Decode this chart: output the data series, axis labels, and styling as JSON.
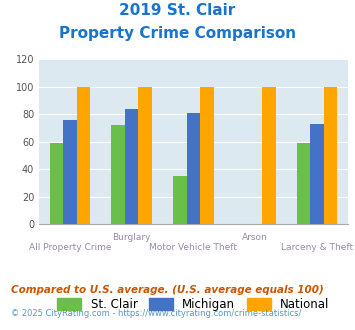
{
  "title_line1": "2019 St. Clair",
  "title_line2": "Property Crime Comparison",
  "x_labels_top": [
    "",
    "Burglary",
    "",
    "Arson",
    ""
  ],
  "x_labels_bottom": [
    "All Property Crime",
    "",
    "Motor Vehicle Theft",
    "",
    "Larceny & Theft"
  ],
  "st_clair": [
    59,
    72,
    35,
    0,
    59
  ],
  "michigan": [
    76,
    84,
    81,
    0,
    73
  ],
  "national": [
    100,
    100,
    100,
    100,
    100
  ],
  "colors": {
    "st_clair": "#6abf4b",
    "michigan": "#4472c4",
    "national": "#ffa500"
  },
  "ylim": [
    0,
    120
  ],
  "yticks": [
    0,
    20,
    40,
    60,
    80,
    100,
    120
  ],
  "legend_labels": [
    "St. Clair",
    "Michigan",
    "National"
  ],
  "footnote1": "Compared to U.S. average. (U.S. average equals 100)",
  "footnote2": "© 2025 CityRating.com - https://www.cityrating.com/crime-statistics/",
  "title_color": "#1874cd",
  "footnote1_color": "#cc5500",
  "footnote2_color": "#5599bb",
  "bg_color": "#dce9f0"
}
